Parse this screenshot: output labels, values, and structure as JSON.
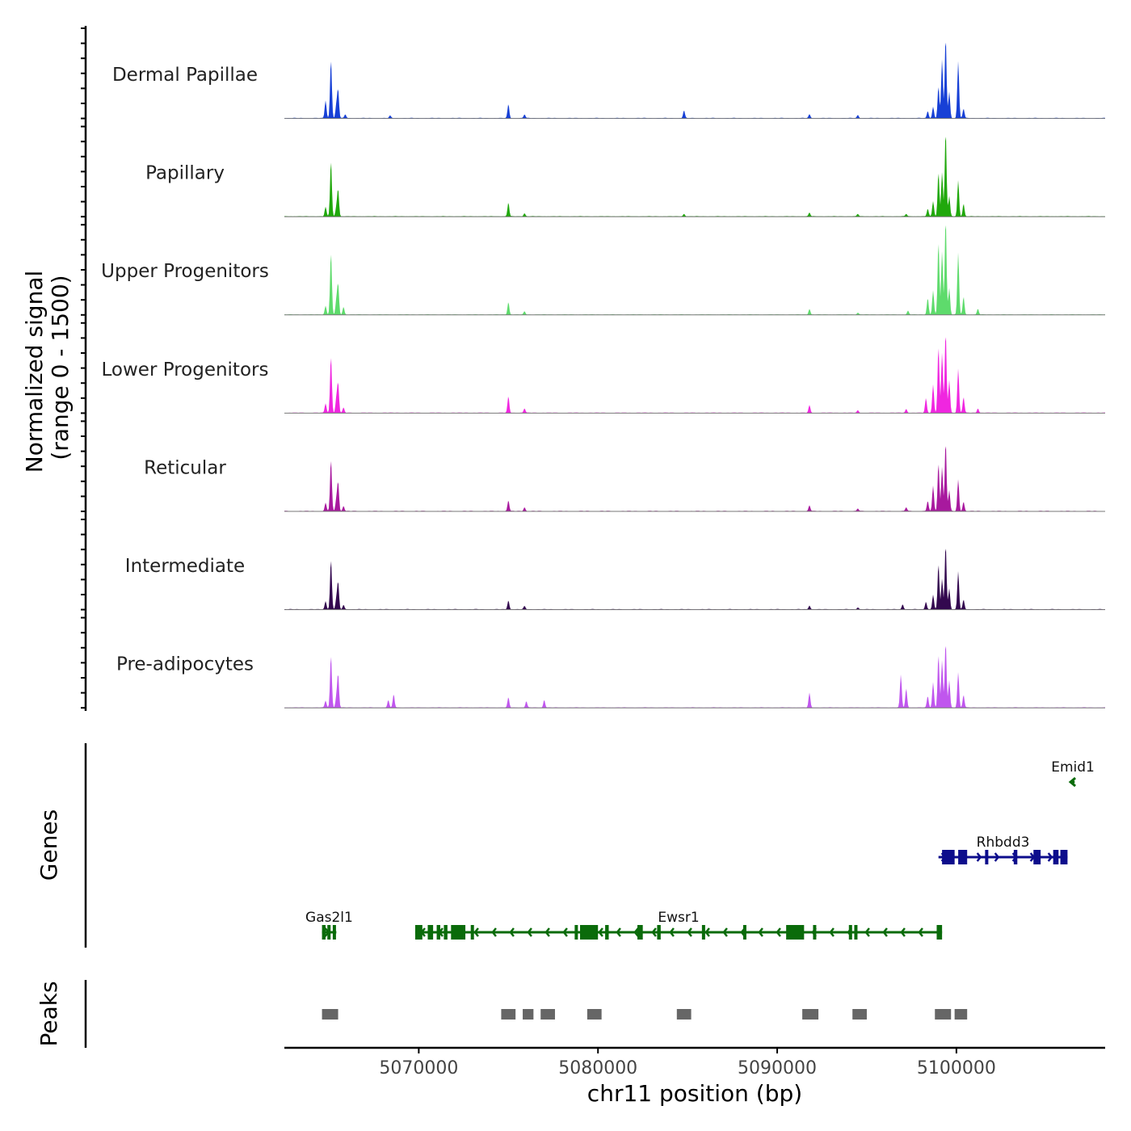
{
  "chart_data": {
    "type": "area",
    "title": "",
    "ylabel_main": "Normalized signal",
    "ylabel_range": "(range 0 - 1500)",
    "xlabel": "chr11 position (bp)",
    "xlim": [
      5062500,
      5108300
    ],
    "ylim": [
      0,
      1500
    ],
    "x_ticks": [
      5070000,
      5080000,
      5090000,
      5100000
    ],
    "x_tick_labels": [
      "5070000",
      "5080000",
      "5090000",
      "5100000"
    ],
    "genes_label": "Genes",
    "peaks_label": "Peaks",
    "series": [
      {
        "name": "Dermal Papillae",
        "color": "#1740d6",
        "peaks": [
          [
            5064800,
            280
          ],
          [
            5065100,
            930
          ],
          [
            5065400,
            200
          ],
          [
            5065500,
            440
          ],
          [
            5065900,
            60
          ],
          [
            5068400,
            40
          ],
          [
            5075000,
            220
          ],
          [
            5075900,
            60
          ],
          [
            5084800,
            120
          ],
          [
            5091800,
            60
          ],
          [
            5094500,
            50
          ],
          [
            5098400,
            110
          ],
          [
            5098700,
            180
          ],
          [
            5099000,
            500
          ],
          [
            5099200,
            930
          ],
          [
            5099400,
            1280
          ],
          [
            5099600,
            420
          ],
          [
            5100100,
            900
          ],
          [
            5100400,
            150
          ]
        ]
      },
      {
        "name": "Papillary",
        "color": "#20a80c",
        "peaks": [
          [
            5064800,
            150
          ],
          [
            5065100,
            880
          ],
          [
            5065400,
            140
          ],
          [
            5065500,
            420
          ],
          [
            5075000,
            220
          ],
          [
            5075900,
            50
          ],
          [
            5084800,
            40
          ],
          [
            5091800,
            60
          ],
          [
            5094500,
            40
          ],
          [
            5097200,
            40
          ],
          [
            5098400,
            120
          ],
          [
            5098700,
            240
          ],
          [
            5099000,
            700
          ],
          [
            5099200,
            700
          ],
          [
            5099400,
            1350
          ],
          [
            5099600,
            320
          ],
          [
            5100100,
            570
          ],
          [
            5100400,
            200
          ]
        ]
      },
      {
        "name": "Upper Progenitors",
        "color": "#5edb6c",
        "peaks": [
          [
            5064800,
            140
          ],
          [
            5065100,
            980
          ],
          [
            5065400,
            220
          ],
          [
            5065500,
            470
          ],
          [
            5065800,
            120
          ],
          [
            5075000,
            200
          ],
          [
            5075900,
            50
          ],
          [
            5091800,
            90
          ],
          [
            5094500,
            30
          ],
          [
            5097300,
            60
          ],
          [
            5098400,
            260
          ],
          [
            5098700,
            380
          ],
          [
            5099000,
            1150
          ],
          [
            5099200,
            1000
          ],
          [
            5099400,
            1520
          ],
          [
            5099600,
            420
          ],
          [
            5100100,
            980
          ],
          [
            5100400,
            280
          ],
          [
            5101200,
            90
          ]
        ]
      },
      {
        "name": "Lower Progenitors",
        "color": "#f026e0",
        "peaks": [
          [
            5064800,
            150
          ],
          [
            5065100,
            900
          ],
          [
            5065400,
            220
          ],
          [
            5065500,
            460
          ],
          [
            5065800,
            80
          ],
          [
            5075000,
            260
          ],
          [
            5075900,
            70
          ],
          [
            5091800,
            120
          ],
          [
            5094500,
            40
          ],
          [
            5097200,
            60
          ],
          [
            5098300,
            230
          ],
          [
            5098700,
            450
          ],
          [
            5099000,
            1050
          ],
          [
            5099200,
            950
          ],
          [
            5099400,
            1280
          ],
          [
            5099600,
            520
          ],
          [
            5100100,
            700
          ],
          [
            5100400,
            250
          ],
          [
            5101200,
            70
          ]
        ]
      },
      {
        "name": "Reticular",
        "color": "#a8199e",
        "peaks": [
          [
            5064800,
            130
          ],
          [
            5065100,
            820
          ],
          [
            5065400,
            180
          ],
          [
            5065500,
            450
          ],
          [
            5065800,
            80
          ],
          [
            5075000,
            170
          ],
          [
            5075900,
            60
          ],
          [
            5091800,
            90
          ],
          [
            5094500,
            40
          ],
          [
            5097200,
            60
          ],
          [
            5098400,
            160
          ],
          [
            5098700,
            400
          ],
          [
            5099000,
            760
          ],
          [
            5099200,
            700
          ],
          [
            5099400,
            1100
          ],
          [
            5099600,
            330
          ],
          [
            5100100,
            500
          ],
          [
            5100400,
            150
          ]
        ]
      },
      {
        "name": "Intermediate",
        "color": "#33084f",
        "peaks": [
          [
            5064800,
            130
          ],
          [
            5065100,
            790
          ],
          [
            5065400,
            160
          ],
          [
            5065500,
            420
          ],
          [
            5065800,
            70
          ],
          [
            5075000,
            140
          ],
          [
            5075900,
            50
          ],
          [
            5091800,
            60
          ],
          [
            5094500,
            30
          ],
          [
            5097000,
            80
          ],
          [
            5098300,
            120
          ],
          [
            5098700,
            230
          ],
          [
            5099000,
            720
          ],
          [
            5099200,
            480
          ],
          [
            5099400,
            1030
          ],
          [
            5099600,
            330
          ],
          [
            5100100,
            600
          ],
          [
            5100400,
            150
          ]
        ]
      },
      {
        "name": "Pre-adipocytes",
        "color": "#c056ee",
        "peaks": [
          [
            5064800,
            110
          ],
          [
            5065100,
            830
          ],
          [
            5065400,
            160
          ],
          [
            5065500,
            520
          ],
          [
            5068300,
            120
          ],
          [
            5068600,
            210
          ],
          [
            5075000,
            160
          ],
          [
            5076000,
            100
          ],
          [
            5077000,
            120
          ],
          [
            5091800,
            230
          ],
          [
            5096900,
            520
          ],
          [
            5097200,
            300
          ],
          [
            5098400,
            180
          ],
          [
            5098700,
            400
          ],
          [
            5099000,
            840
          ],
          [
            5099200,
            750
          ],
          [
            5099400,
            1040
          ],
          [
            5099600,
            430
          ],
          [
            5100100,
            560
          ],
          [
            5100400,
            200
          ]
        ]
      }
    ],
    "genes": [
      {
        "name": "Gas2l1",
        "color": "#0a6b0a",
        "strand": "+",
        "row": 3,
        "start": 5064600,
        "end": 5065400,
        "exons": [
          [
            5064600,
            5064800
          ],
          [
            5064900,
            5065000
          ],
          [
            5065200,
            5065300
          ]
        ]
      },
      {
        "name": "Ewsr1",
        "color": "#0a6b0a",
        "strand": "-",
        "row": 3,
        "start": 5069800,
        "end": 5099200,
        "exons": [
          [
            5069800,
            5070200
          ],
          [
            5070500,
            5070800
          ],
          [
            5071000,
            5071200
          ],
          [
            5071400,
            5071600
          ],
          [
            5071800,
            5072600
          ],
          [
            5072900,
            5073000
          ],
          [
            5078700,
            5078800
          ],
          [
            5079000,
            5080000
          ],
          [
            5080400,
            5080600
          ],
          [
            5082200,
            5082500
          ],
          [
            5083300,
            5083500
          ],
          [
            5085800,
            5085900
          ],
          [
            5088100,
            5088200
          ],
          [
            5090500,
            5091500
          ],
          [
            5092000,
            5092100
          ],
          [
            5094000,
            5094100
          ],
          [
            5094300,
            5094400
          ],
          [
            5098900,
            5099200
          ]
        ]
      },
      {
        "name": "Rhbdd3",
        "color": "#0d0d8c",
        "strand": "+",
        "row": 2,
        "start": 5099000,
        "end": 5106200,
        "exons": [
          [
            5099200,
            5099900
          ],
          [
            5100100,
            5100600
          ],
          [
            5101600,
            5101700
          ],
          [
            5103200,
            5103400
          ],
          [
            5104300,
            5104700
          ],
          [
            5105400,
            5105700
          ],
          [
            5105800,
            5106200
          ]
        ]
      },
      {
        "name": "Emid1",
        "color": "#0a6b0a",
        "strand": "-",
        "row": 1,
        "start": 5106400,
        "end": 5106600,
        "exons": []
      }
    ],
    "peaks_regions": [
      [
        5064600,
        5065500
      ],
      [
        5074600,
        5075400
      ],
      [
        5075800,
        5076400
      ],
      [
        5076800,
        5077600
      ],
      [
        5079400,
        5080200
      ],
      [
        5084400,
        5085200
      ],
      [
        5091400,
        5092300
      ],
      [
        5094200,
        5095000
      ],
      [
        5098800,
        5099700
      ],
      [
        5099900,
        5100600
      ]
    ]
  }
}
